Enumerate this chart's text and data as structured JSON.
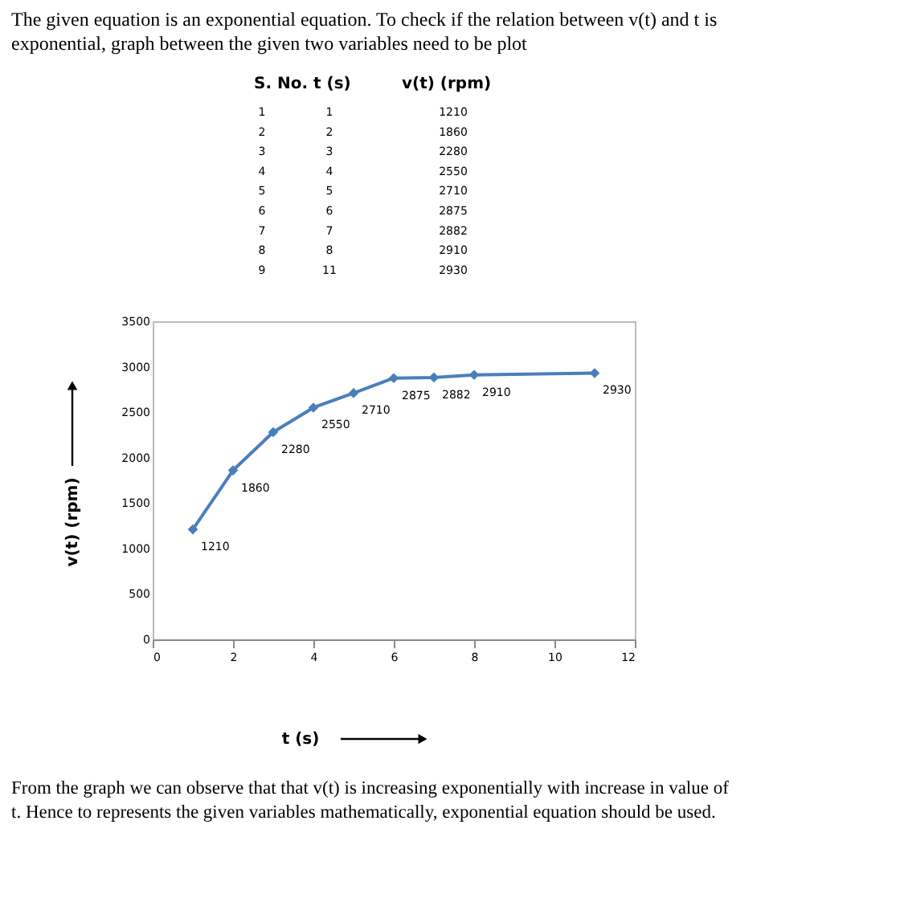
{
  "chart_data": {
    "type": "line",
    "title": "The given equation is an exponential equation. To check if the relation between v(t) and t is exponential, graph between the given two variables need to be plot",
    "xlabel": "t (s)",
    "ylabel": "v(t) (rpm)",
    "x": [
      1,
      2,
      3,
      4,
      5,
      6,
      7,
      8,
      11
    ],
    "series": [
      {
        "color": "#4a7ebb",
        "values": [
          1210,
          1860,
          2280,
          2550,
          2710,
          2875,
          2882,
          2910,
          2930
        ]
      }
    ],
    "xlim": [
      0,
      12
    ],
    "xticks": [
      0,
      2,
      4,
      6,
      8,
      10,
      12
    ],
    "ylim": [
      0,
      3500
    ],
    "yticks": [
      0,
      500,
      1000,
      1500,
      2000,
      2500,
      3000,
      3500
    ],
    "grid": false,
    "marker": "diamond",
    "line_style": "solid",
    "data_labels": true,
    "annotations": [
      "S. No.",
      "t (s)",
      "v(t) (rpm)",
      "1",
      "1",
      "1210",
      "2",
      "2",
      "1860",
      "3",
      "3",
      "2280",
      "4",
      "4",
      "2550",
      "5",
      "5",
      "2710",
      "6",
      "6",
      "2875",
      "7",
      "7",
      "2882",
      "8",
      "8",
      "2910",
      "9",
      "11",
      "2930",
      "From the graph we can observe that that v(t) is increasing exponentially with increase in value of t. Hence to represents the given variables mathematically, exponential equation should be used."
    ]
  }
}
